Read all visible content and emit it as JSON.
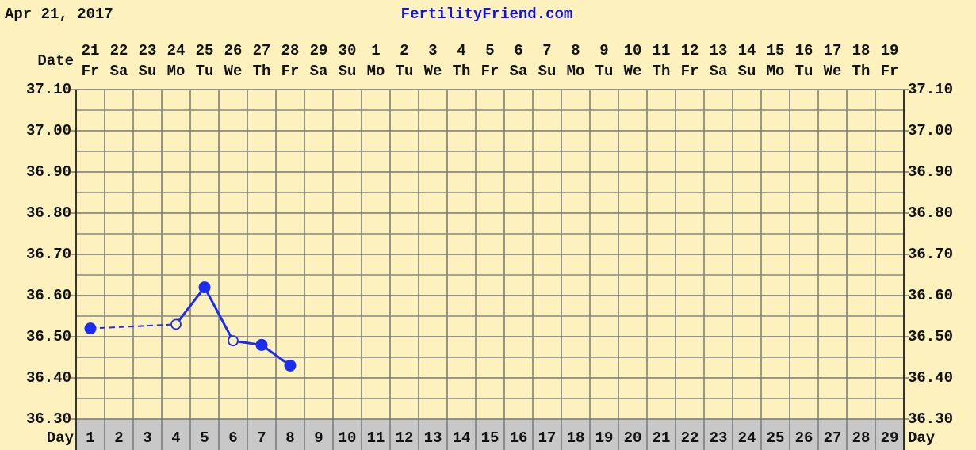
{
  "chart_data": {
    "type": "line",
    "title": "FertilityFriend.com",
    "chart_date": "Apr 21, 2017",
    "date_label": "Date",
    "day_label": "Day",
    "x": [
      1,
      2,
      3,
      4,
      5,
      6,
      7,
      8,
      9,
      10,
      11,
      12,
      13,
      14,
      15,
      16,
      17,
      18,
      19,
      20,
      21,
      22,
      23,
      24,
      25,
      26,
      27,
      28,
      29
    ],
    "dates": [
      "21",
      "22",
      "23",
      "24",
      "25",
      "26",
      "27",
      "28",
      "29",
      "30",
      "1",
      "2",
      "3",
      "4",
      "5",
      "6",
      "7",
      "8",
      "9",
      "10",
      "11",
      "12",
      "13",
      "14",
      "15",
      "16",
      "17",
      "18",
      "19"
    ],
    "weekdays": [
      "Fr",
      "Sa",
      "Su",
      "Mo",
      "Tu",
      "We",
      "Th",
      "Fr",
      "Sa",
      "Su",
      "Mo",
      "Tu",
      "We",
      "Th",
      "Fr",
      "Sa",
      "Su",
      "Mo",
      "Tu",
      "We",
      "Th",
      "Fr",
      "Sa",
      "Su",
      "Mo",
      "Tu",
      "We",
      "Th",
      "Fr"
    ],
    "series": [
      {
        "color": "#1c2cf0",
        "values": [
          36.52,
          null,
          null,
          36.53,
          36.62,
          36.49,
          36.48,
          36.43,
          null,
          null,
          null,
          null,
          null,
          null,
          null,
          null,
          null,
          null,
          null,
          null,
          null,
          null,
          null,
          null,
          null,
          null,
          null,
          null,
          null
        ],
        "hollow": [
          false,
          null,
          null,
          true,
          false,
          true,
          false,
          false,
          null,
          null,
          null,
          null,
          null,
          null,
          null,
          null,
          null,
          null,
          null,
          null,
          null,
          null,
          null,
          null,
          null,
          null,
          null,
          null,
          null
        ]
      }
    ],
    "ylim": [
      36.3,
      37.1
    ],
    "yticks": [
      {
        "value": 36.3,
        "label": "36.30"
      },
      {
        "value": 36.4,
        "label": "36.40"
      },
      {
        "value": 36.5,
        "label": "36.50"
      },
      {
        "value": 36.6,
        "label": "36.60"
      },
      {
        "value": 36.7,
        "label": "36.70"
      },
      {
        "value": 36.8,
        "label": "36.80"
      },
      {
        "value": 36.9,
        "label": "36.90"
      },
      {
        "value": 37.0,
        "label": "37.00"
      },
      {
        "value": 37.1,
        "label": "37.10"
      }
    ],
    "minor_yticks": [
      36.35,
      36.45,
      36.55,
      36.65,
      36.75,
      36.85,
      36.95,
      37.05
    ],
    "grid": true,
    "connect_gaps": "dashed"
  }
}
